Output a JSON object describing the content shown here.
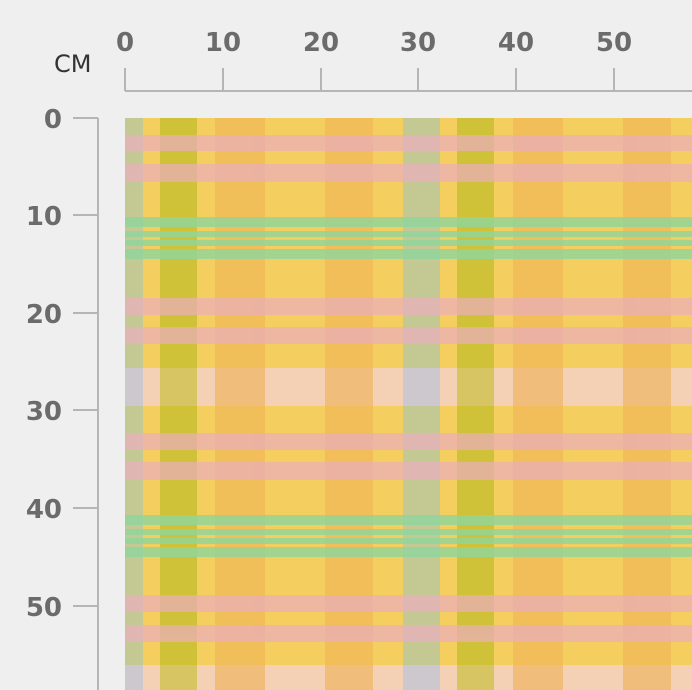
{
  "unit_label": "CM",
  "horizontal_ruler": {
    "ticks": [
      "0",
      "10",
      "20",
      "30",
      "40",
      "50"
    ]
  },
  "vertical_ruler": {
    "ticks": [
      "0",
      "10",
      "20",
      "30",
      "40",
      "50"
    ]
  },
  "pattern": {
    "name": "plaid",
    "colors": {
      "background": "#f4ce5e",
      "olive_stripe": "#cdc23a",
      "grey_blue_stripe": "#bfc6cf",
      "orange_band": "#f2bc5c",
      "pink_stripe": "#eab2b0",
      "peach_band": "#f3cfc0",
      "green_stripe": "#8fd59a",
      "ruler_line": "#b5b5b5",
      "tick_text": "#6b6b6b"
    }
  }
}
